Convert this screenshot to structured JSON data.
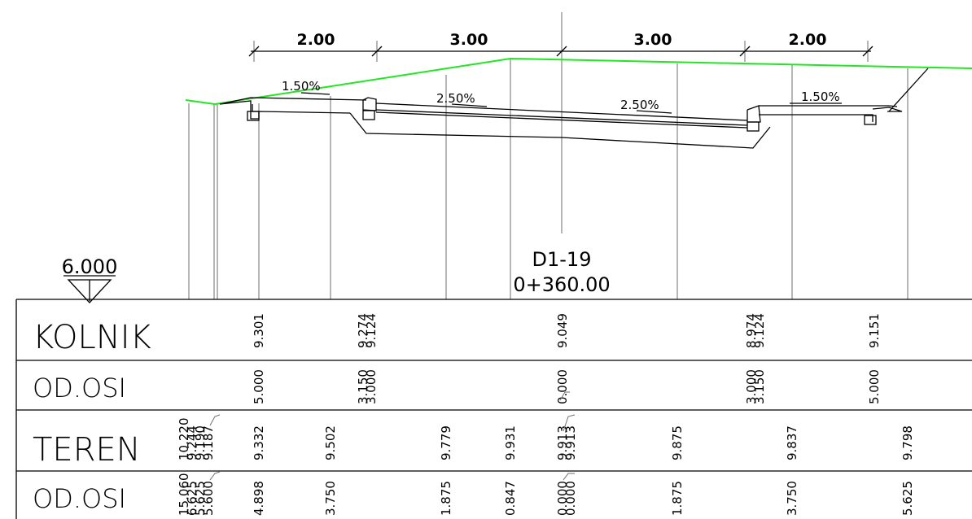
{
  "dimensions": [
    "2.00",
    "3.00",
    "3.00",
    "2.00"
  ],
  "slopes": [
    "1.50%",
    "2.50%",
    "2.50%",
    "1.50%"
  ],
  "elevation_datum": "6.000",
  "section": {
    "name": "D1-19",
    "station": "0+360.00"
  },
  "table": {
    "rows": [
      {
        "label": "KOLNIK"
      },
      {
        "label": "OD.OSI"
      },
      {
        "label": "TEREN"
      },
      {
        "label": "OD.OSI"
      }
    ],
    "kolnik": [
      "9.301",
      "9.274",
      "9.124",
      "9.049",
      "8.974",
      "9.124",
      "9.151"
    ],
    "kolnik_offsets": [
      "5.000",
      "3.150",
      "3.000",
      "0.000",
      "3.000",
      "3.150",
      "5.000"
    ],
    "teren": [
      "10.220",
      "9.244",
      "9.190",
      "9.187",
      "9.332",
      "9.502",
      "9.779",
      "9.931",
      "9.913",
      "9.913",
      "9.875",
      "9.837",
      "9.798"
    ],
    "teren_offsets": [
      "15.060",
      "6.625",
      "5.625",
      "5.600",
      "4.898",
      "3.750",
      "1.875",
      "0.847",
      "0.000",
      "0.000",
      "1.875",
      "3.750",
      "5.625"
    ]
  }
}
